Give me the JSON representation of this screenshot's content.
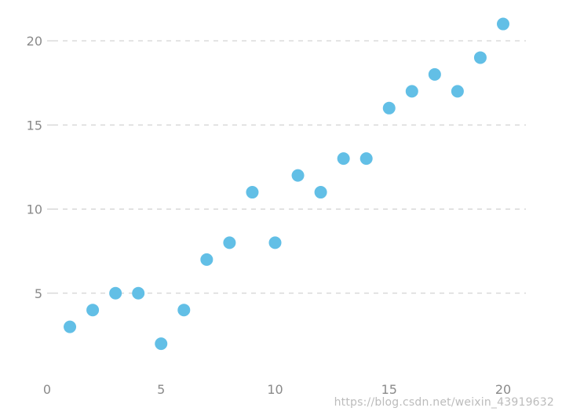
{
  "chart_data": {
    "type": "scatter",
    "title": "",
    "xlabel": "",
    "ylabel": "",
    "xlim": [
      0,
      21
    ],
    "ylim": [
      0,
      21
    ],
    "x_ticks": [
      0,
      5,
      10,
      15,
      20
    ],
    "y_ticks": [
      5,
      10,
      15,
      20
    ],
    "grid": "horizontal-dashed",
    "series": [
      {
        "color": "#62bfe6",
        "points": [
          {
            "x": 1,
            "y": 3
          },
          {
            "x": 2,
            "y": 4
          },
          {
            "x": 3,
            "y": 5
          },
          {
            "x": 4,
            "y": 5
          },
          {
            "x": 5,
            "y": 2
          },
          {
            "x": 6,
            "y": 4
          },
          {
            "x": 7,
            "y": 7
          },
          {
            "x": 8,
            "y": 8
          },
          {
            "x": 9,
            "y": 11
          },
          {
            "x": 10,
            "y": 8
          },
          {
            "x": 11,
            "y": 12
          },
          {
            "x": 12,
            "y": 11
          },
          {
            "x": 13,
            "y": 13
          },
          {
            "x": 14,
            "y": 13
          },
          {
            "x": 15,
            "y": 16
          },
          {
            "x": 16,
            "y": 17
          },
          {
            "x": 17,
            "y": 18
          },
          {
            "x": 18,
            "y": 17
          },
          {
            "x": 19,
            "y": 19
          },
          {
            "x": 20,
            "y": 21
          }
        ]
      }
    ]
  },
  "watermark": {
    "text": "https://blog.csdn.net/weixin_43919632"
  }
}
